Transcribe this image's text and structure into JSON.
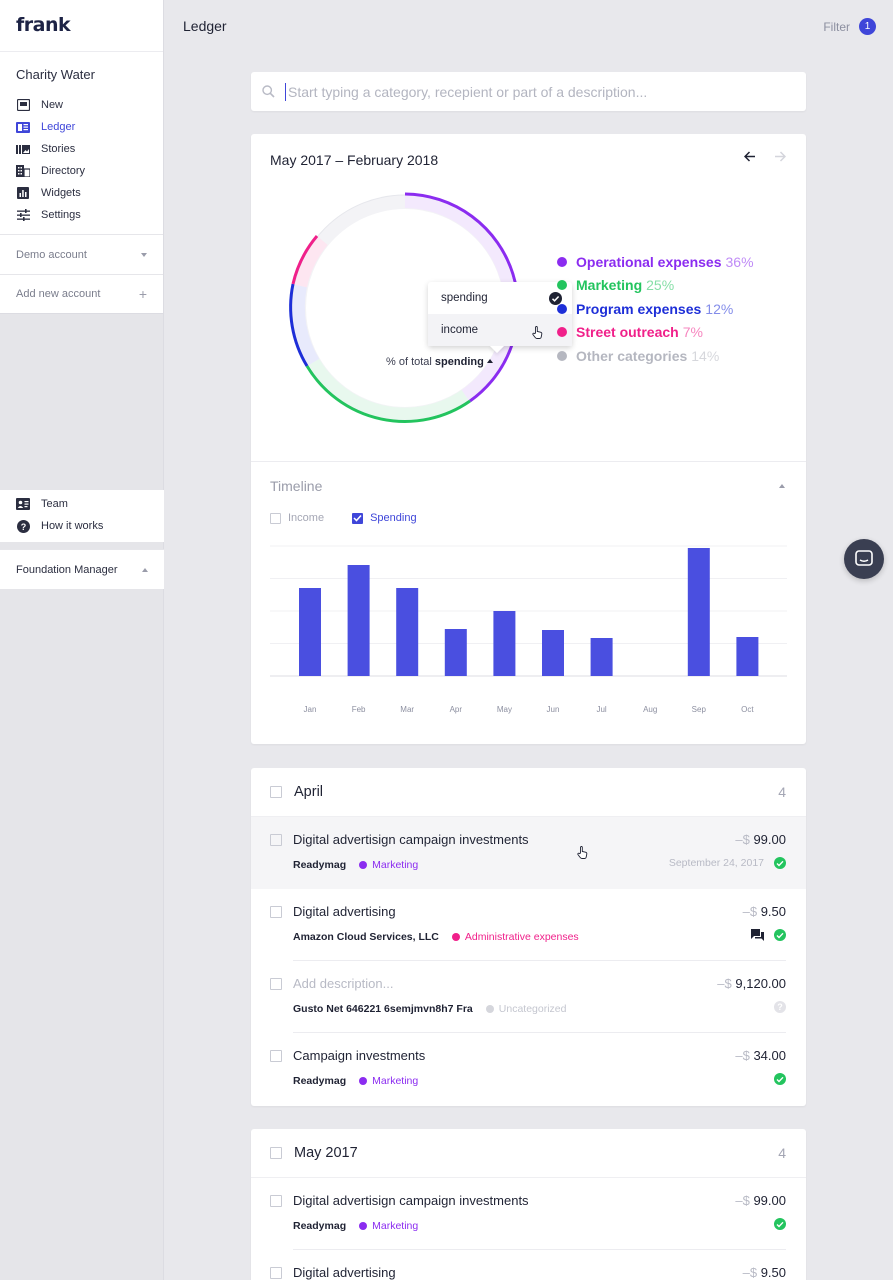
{
  "app": {
    "logo": "frank",
    "org_name": "Charity Water"
  },
  "sidebar": {
    "items": [
      {
        "label": "New",
        "icon": "inbox-icon",
        "active": false
      },
      {
        "label": "Ledger",
        "icon": "ledger-icon",
        "active": true
      },
      {
        "label": "Stories",
        "icon": "stories-icon",
        "active": false
      },
      {
        "label": "Directory",
        "icon": "building-icon",
        "active": false
      },
      {
        "label": "Widgets",
        "icon": "widgets-icon",
        "active": false
      },
      {
        "label": "Settings",
        "icon": "sliders-icon",
        "active": false
      }
    ],
    "demo_account": "Demo account",
    "add_account": "Add new account",
    "add_icon": "+",
    "bottom_items": [
      {
        "label": "Team",
        "icon": "team-icon"
      },
      {
        "label": "How it works",
        "icon": "help-icon"
      }
    ],
    "foundation": "Foundation Manager"
  },
  "header": {
    "title": "Ledger",
    "filter_label": "Filter",
    "filter_count": "1"
  },
  "search": {
    "placeholder": "Start typing a category, recepient or part of a description..."
  },
  "summary": {
    "range": "May 2017 – February 2018",
    "pct_prefix": "% of total",
    "pct_mode": "spending",
    "dropdown": {
      "options": [
        "spending",
        "income"
      ],
      "selected": "spending"
    },
    "legend": [
      {
        "label": "Operational expenses",
        "pct": "36%",
        "color": "#8b2cf0"
      },
      {
        "label": "Marketing",
        "pct": "25%",
        "color": "#23c45e"
      },
      {
        "label": "Program expenses",
        "pct": "12%",
        "color": "#1e2fd8"
      },
      {
        "label": "Street outreach",
        "pct": "7%",
        "color": "#f0208a"
      },
      {
        "label": "Other categories",
        "pct": "14%",
        "color": "#b5b7c0"
      }
    ]
  },
  "timeline": {
    "title": "Timeline",
    "income_label": "Income",
    "spending_label": "Spending",
    "income_checked": false,
    "spending_checked": true,
    "bar_color": "#4a4fe0"
  },
  "chart_data": {
    "type": "bar",
    "categories": [
      "Jan",
      "Feb",
      "Mar",
      "Apr",
      "May",
      "Jun",
      "Jul",
      "Aug",
      "Sep",
      "Oct"
    ],
    "values": [
      88,
      111,
      88,
      47,
      65,
      46,
      38,
      0,
      128,
      39
    ],
    "ylim": [
      0,
      130
    ],
    "grid": true,
    "title": "",
    "xlabel": "",
    "ylabel": ""
  },
  "groups": [
    {
      "month": "April",
      "count": "4",
      "rows": [
        {
          "desc": "Digital advertisign campaign investments",
          "placeholder": false,
          "vendor": "Readymag",
          "category": "Marketing",
          "cat_color": "#8b2cf0",
          "cur": "–$",
          "amount": "99.00",
          "date": "September 24, 2017",
          "status": "ok",
          "comment": false,
          "hl": true
        },
        {
          "desc": "Digital advertising",
          "placeholder": false,
          "vendor": "Amazon Cloud Services, LLC",
          "category": "Administrative expenses",
          "cat_color": "#f0208a",
          "cur": "–$",
          "amount": "9.50",
          "date": "",
          "status": "ok",
          "comment": true,
          "hl": false
        },
        {
          "desc": "Add description...",
          "placeholder": true,
          "vendor": "Gusto Net 646221 6semjmvn8h7 Fra",
          "category": "Uncategorized",
          "cat_color": "#d5d6dc",
          "cur": "–$",
          "amount": "9,120.00",
          "date": "",
          "status": "unknown",
          "comment": false,
          "hl": false
        },
        {
          "desc": "Campaign investments",
          "placeholder": false,
          "vendor": "Readymag",
          "category": "Marketing",
          "cat_color": "#8b2cf0",
          "cur": "–$",
          "amount": "34.00",
          "date": "",
          "status": "ok",
          "comment": false,
          "hl": false
        }
      ]
    },
    {
      "month": "May 2017",
      "count": "4",
      "rows": [
        {
          "desc": "Digital advertisign campaign investments",
          "placeholder": false,
          "vendor": "Readymag",
          "category": "Marketing",
          "cat_color": "#8b2cf0",
          "cur": "–$",
          "amount": "99.00",
          "date": "",
          "status": "ok",
          "comment": false,
          "hl": false
        },
        {
          "desc": "Digital advertising",
          "placeholder": false,
          "vendor": "",
          "category": "",
          "cat_color": "#f0208a",
          "cur": "–$",
          "amount": "9.50",
          "date": "",
          "status": "",
          "comment": false,
          "hl": false
        }
      ]
    }
  ]
}
